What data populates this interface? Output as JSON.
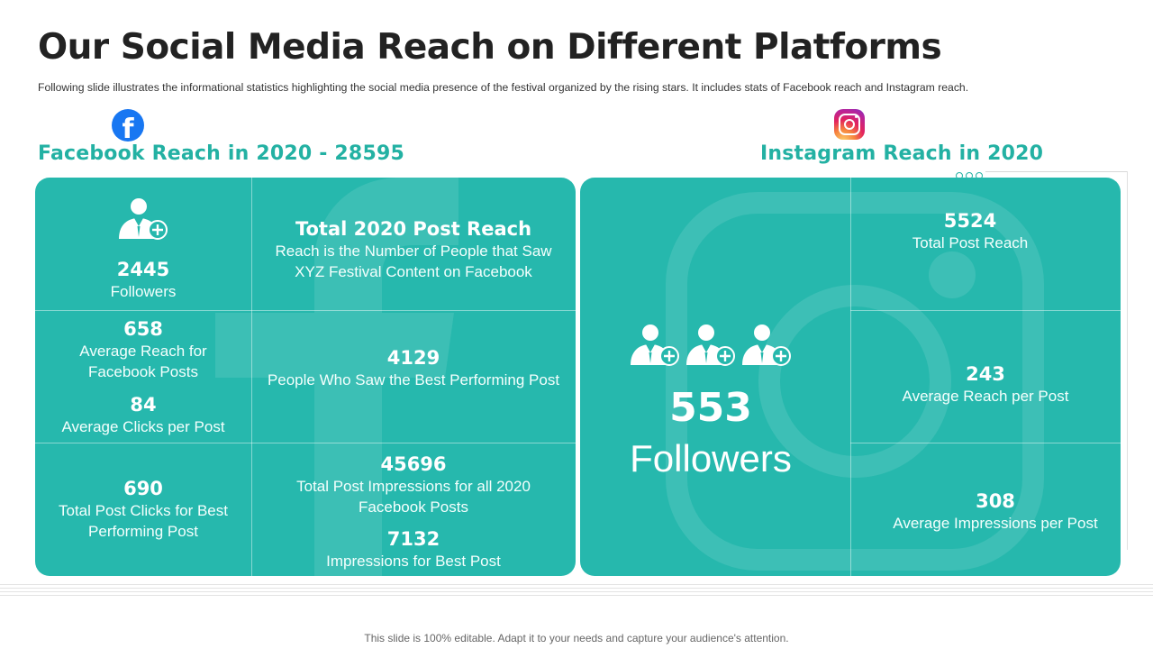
{
  "header": {
    "title": "Our Social Media Reach on Different Platforms",
    "subtitle": "Following slide illustrates the informational statistics highlighting the social media presence of the festival organized by the rising stars. It includes stats of Facebook reach and Instagram reach."
  },
  "facebook": {
    "logo_icon": "facebook-icon",
    "logo_letter": "f",
    "heading": "Facebook Reach in 2020  - 28595",
    "followers": {
      "value": "2445",
      "label": "Followers"
    },
    "total_post_reach": {
      "title": "Total 2020 Post Reach",
      "description": "Reach is the Number of People that Saw XYZ Festival Content on Facebook"
    },
    "average_reach": {
      "value": "658",
      "label": "Average Reach for Facebook Posts"
    },
    "average_clicks": {
      "value": "84",
      "label": "Average Clicks per Post"
    },
    "best_post_viewers": {
      "value": "4129",
      "label": "People Who Saw the Best Performing Post"
    },
    "best_post_clicks": {
      "value": "690",
      "label": "Total Post Clicks for Best Performing Post"
    },
    "total_impressions": {
      "value": "45696",
      "label": "Total Post Impressions for all 2020 Facebook Posts"
    },
    "best_post_impressions": {
      "value": "7132",
      "label": "Impressions for Best Post"
    }
  },
  "instagram": {
    "logo_icon": "instagram-icon",
    "heading": "Instagram Reach in 2020",
    "followers": {
      "value": "553",
      "label": "Followers"
    },
    "total_post_reach": {
      "value": "5524",
      "label": "Total Post Reach"
    },
    "average_reach": {
      "value": "243",
      "label": "Average Reach per Post"
    },
    "average_impressions": {
      "value": "308",
      "label": "Average Impressions per Post"
    }
  },
  "colors": {
    "teal": "#26b8ad",
    "heading_teal": "#23b1a3",
    "facebook_blue": "#1877f2"
  },
  "footer": {
    "text": "This slide is 100% editable. Adapt it to your needs and capture your audience's attention."
  }
}
